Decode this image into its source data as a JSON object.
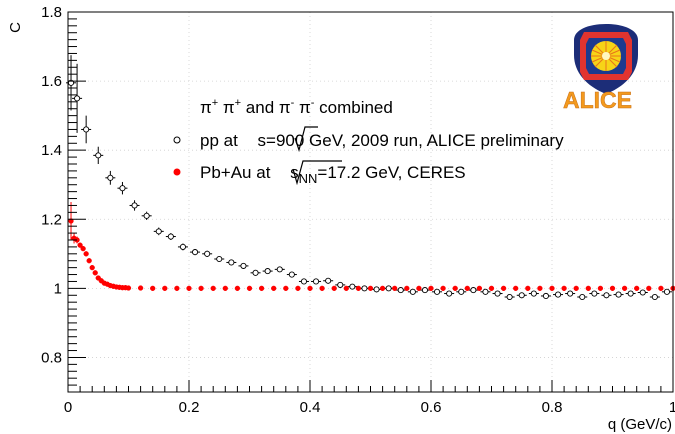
{
  "chart_data": {
    "type": "scatter",
    "title": "",
    "xlabel": "q (GeV/c)",
    "ylabel": "C",
    "xlim": [
      0,
      1
    ],
    "ylim": [
      0.7,
      1.8
    ],
    "x_ticks": [
      "0",
      "0.2",
      "0.4",
      "0.6",
      "0.8",
      "1"
    ],
    "y_ticks": [
      "0.8",
      "1",
      "1.2",
      "1.4",
      "1.6",
      "1.8"
    ],
    "grid": true,
    "legend_position": "top-right",
    "legend_header": {
      "particles": "π",
      "pp_charge": "+",
      "mid": " π",
      "mid_charge": "+",
      "and_text": " and π",
      "nn_charge": "-",
      "end": " π",
      "end_charge": "-",
      "suffix": " combined"
    },
    "logo_text": "ALICE",
    "series": [
      {
        "name": "pp at √s=900 GeV, 2009 run, ALICE preliminary",
        "legend_parts": {
          "before": "pp at ",
          "sqrt": "s",
          "after": "=900 GeV, 2009 run, ALICE preliminary"
        },
        "marker": "open-circle",
        "color": "#000000",
        "points": [
          [
            0.005,
            1.595,
            0.08
          ],
          [
            0.015,
            1.55,
            0.1
          ],
          [
            0.03,
            1.46,
            0.04
          ],
          [
            0.05,
            1.385,
            0.025
          ],
          [
            0.07,
            1.32,
            0.02
          ],
          [
            0.09,
            1.29,
            0.018
          ],
          [
            0.11,
            1.24,
            0.015
          ],
          [
            0.13,
            1.21,
            0.012
          ],
          [
            0.15,
            1.165,
            0.011
          ],
          [
            0.17,
            1.15,
            0.01
          ],
          [
            0.19,
            1.12,
            0.01
          ],
          [
            0.21,
            1.105,
            0.009
          ],
          [
            0.23,
            1.1,
            0.009
          ],
          [
            0.25,
            1.085,
            0.008
          ],
          [
            0.27,
            1.075,
            0.008
          ],
          [
            0.29,
            1.065,
            0.008
          ],
          [
            0.31,
            1.045,
            0.007
          ],
          [
            0.33,
            1.05,
            0.007
          ],
          [
            0.35,
            1.055,
            0.007
          ],
          [
            0.37,
            1.04,
            0.007
          ],
          [
            0.39,
            1.02,
            0.007
          ],
          [
            0.41,
            1.02,
            0.007
          ],
          [
            0.43,
            1.022,
            0.007
          ],
          [
            0.45,
            1.01,
            0.007
          ],
          [
            0.47,
            1.005,
            0.007
          ],
          [
            0.49,
            1.0,
            0.007
          ],
          [
            0.51,
            0.997,
            0.007
          ],
          [
            0.53,
            1.0,
            0.007
          ],
          [
            0.55,
            0.995,
            0.007
          ],
          [
            0.57,
            0.99,
            0.007
          ],
          [
            0.59,
            0.995,
            0.007
          ],
          [
            0.61,
            0.99,
            0.007
          ],
          [
            0.63,
            0.985,
            0.007
          ],
          [
            0.65,
            0.99,
            0.007
          ],
          [
            0.67,
            0.995,
            0.007
          ],
          [
            0.69,
            0.99,
            0.007
          ],
          [
            0.71,
            0.985,
            0.007
          ],
          [
            0.73,
            0.975,
            0.007
          ],
          [
            0.75,
            0.98,
            0.007
          ],
          [
            0.77,
            0.985,
            0.007
          ],
          [
            0.79,
            0.978,
            0.007
          ],
          [
            0.81,
            0.982,
            0.007
          ],
          [
            0.83,
            0.985,
            0.007
          ],
          [
            0.85,
            0.975,
            0.007
          ],
          [
            0.87,
            0.985,
            0.007
          ],
          [
            0.89,
            0.98,
            0.007
          ],
          [
            0.91,
            0.982,
            0.007
          ],
          [
            0.93,
            0.985,
            0.007
          ],
          [
            0.95,
            0.988,
            0.007
          ],
          [
            0.97,
            0.975,
            0.007
          ],
          [
            0.99,
            0.99,
            0.007
          ]
        ]
      },
      {
        "name": "Pb+Au at √s_NN=17.2 GeV, CERES",
        "legend_parts": {
          "before": "Pb+Au at ",
          "sqrt": "s",
          "sub": "NN",
          "after": "=17.2 GeV, CERES"
        },
        "marker": "filled-circle",
        "color": "#ff0000",
        "points": [
          [
            0.005,
            1.195,
            0.055
          ],
          [
            0.01,
            1.145,
            0.015
          ],
          [
            0.015,
            1.14,
            0.01
          ],
          [
            0.02,
            1.125,
            0.0
          ],
          [
            0.025,
            1.115,
            0.0
          ],
          [
            0.03,
            1.1,
            0.0
          ],
          [
            0.035,
            1.08,
            0.0
          ],
          [
            0.04,
            1.06,
            0.0
          ],
          [
            0.045,
            1.045,
            0.0
          ],
          [
            0.05,
            1.03,
            0.0
          ],
          [
            0.055,
            1.022,
            0.0
          ],
          [
            0.06,
            1.015,
            0.0
          ],
          [
            0.065,
            1.012,
            0.0
          ],
          [
            0.07,
            1.008,
            0.0
          ],
          [
            0.075,
            1.006,
            0.0
          ],
          [
            0.08,
            1.004,
            0.0
          ],
          [
            0.085,
            1.003,
            0.0
          ],
          [
            0.09,
            1.002,
            0.0
          ],
          [
            0.095,
            1.002,
            0.0
          ],
          [
            0.1,
            1.001,
            0.0
          ],
          [
            0.12,
            1.001,
            0.0
          ],
          [
            0.14,
            1.0,
            0.0
          ],
          [
            0.16,
            1.0,
            0.0
          ],
          [
            0.18,
            1.0,
            0.0
          ],
          [
            0.2,
            1.0,
            0.0
          ],
          [
            0.22,
            1.0,
            0.0
          ],
          [
            0.24,
            1.0,
            0.0
          ],
          [
            0.26,
            1.0,
            0.0
          ],
          [
            0.28,
            1.0,
            0.0
          ],
          [
            0.3,
            1.0,
            0.0
          ],
          [
            0.32,
            1.0,
            0.0
          ],
          [
            0.34,
            1.0,
            0.0
          ],
          [
            0.36,
            1.0,
            0.0
          ],
          [
            0.38,
            1.0,
            0.0
          ],
          [
            0.4,
            1.0,
            0.0
          ],
          [
            0.42,
            1.0,
            0.0
          ],
          [
            0.44,
            1.0,
            0.0
          ],
          [
            0.46,
            1.0,
            0.0
          ],
          [
            0.48,
            1.0,
            0.0
          ],
          [
            0.5,
            1.0,
            0.0
          ],
          [
            0.52,
            1.0,
            0.0
          ],
          [
            0.54,
            1.0,
            0.0
          ],
          [
            0.56,
            1.0,
            0.0
          ],
          [
            0.58,
            1.0,
            0.0
          ],
          [
            0.6,
            1.0,
            0.0
          ],
          [
            0.62,
            1.0,
            0.0
          ],
          [
            0.64,
            1.0,
            0.0
          ],
          [
            0.66,
            1.0,
            0.0
          ],
          [
            0.68,
            1.0,
            0.0
          ],
          [
            0.7,
            1.0,
            0.0
          ],
          [
            0.72,
            1.0,
            0.0
          ],
          [
            0.74,
            1.0,
            0.0
          ],
          [
            0.76,
            1.0,
            0.0
          ],
          [
            0.78,
            1.0,
            0.0
          ],
          [
            0.8,
            1.0,
            0.0
          ],
          [
            0.82,
            1.0,
            0.0
          ],
          [
            0.84,
            1.0,
            0.0
          ],
          [
            0.86,
            1.0,
            0.0
          ],
          [
            0.88,
            1.0,
            0.0
          ],
          [
            0.9,
            1.0,
            0.0
          ],
          [
            0.92,
            1.0,
            0.0
          ],
          [
            0.94,
            1.0,
            0.0
          ],
          [
            0.96,
            1.0,
            0.0
          ],
          [
            0.98,
            1.0,
            0.0
          ],
          [
            1.0,
            1.0,
            0.0
          ]
        ]
      }
    ]
  }
}
